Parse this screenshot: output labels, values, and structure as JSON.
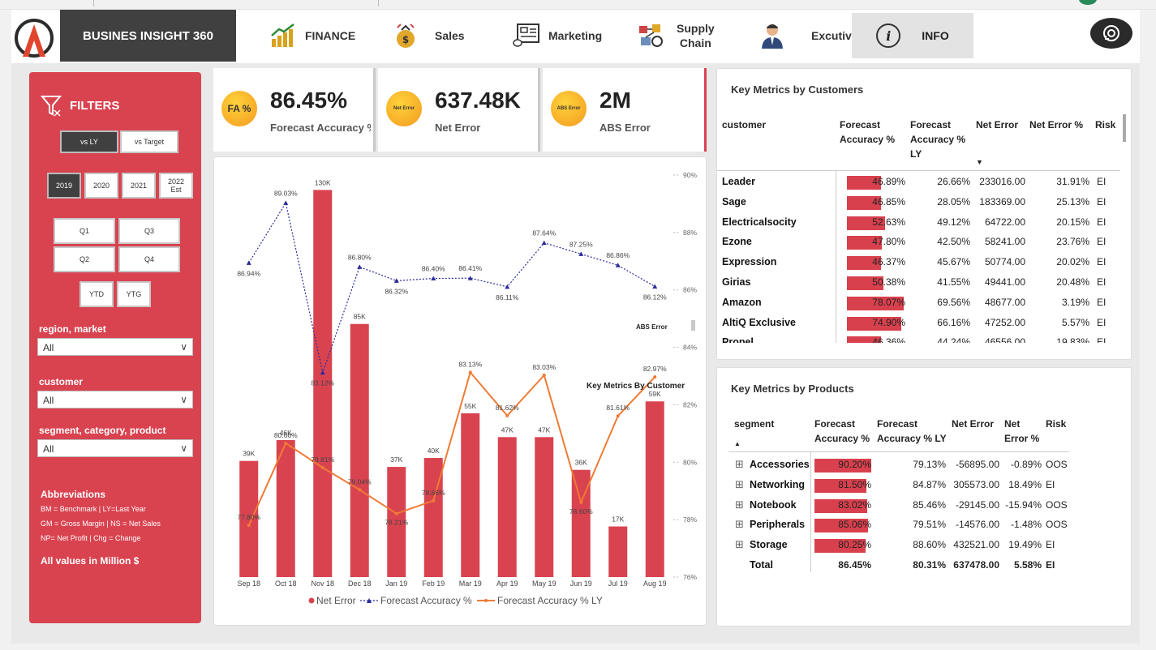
{
  "nav": {
    "brand": "BUSINES INSIGHT 360",
    "items": [
      {
        "label": "FINANCE",
        "icon": "finance-chart-icon"
      },
      {
        "label": "Sales",
        "icon": "money-bag-icon"
      },
      {
        "label": "Marketing",
        "icon": "marketing-board-icon"
      },
      {
        "label": "Supply\nChain",
        "icon": "supply-chain-icon"
      },
      {
        "label": "Excutive",
        "icon": "executive-person-icon"
      }
    ],
    "info_label": "INFO",
    "info_icon_text": "i"
  },
  "filters": {
    "title": "FILTERS",
    "compare": [
      "vs LY",
      "vs Target"
    ],
    "years": [
      "2019",
      "2020",
      "2021",
      "2022\nEst"
    ],
    "quarters": [
      "Q1",
      "Q3",
      "Q2",
      "Q4"
    ],
    "periods": [
      "YTD",
      "YTG"
    ],
    "region_label": "region, market",
    "region_value": "All",
    "customer_label": "customer",
    "customer_value": "All",
    "segment_label": "segment, category, product",
    "segment_value": "All",
    "abbr_title": "Abbreviations",
    "abbr_lines": [
      "BM = Benchmark | LY=Last Year",
      "GM = Gross Margin | NS = Net Sales",
      "NP= Net Profit | Chg = Change"
    ],
    "all_values": "All values in Million $"
  },
  "kpis": [
    {
      "badge": "FA %",
      "value": "86.45%",
      "label": "Forecast Accuracy %"
    },
    {
      "badge": "Net Error",
      "value": "637.48K",
      "label": "Net Error"
    },
    {
      "badge": "ABS Error",
      "value": "2M",
      "label": "ABS Error"
    }
  ],
  "chart_data": {
    "type": "bar",
    "categories": [
      "Sep 18",
      "Oct 18",
      "Nov 18",
      "Dec 18",
      "Jan 19",
      "Feb 19",
      "Mar 19",
      "Apr 19",
      "May 19",
      "Jun 19",
      "Jul 19",
      "Aug 19"
    ],
    "series": [
      {
        "name": "Net Error",
        "type": "bar",
        "values": [
          39,
          46,
          130,
          85,
          37,
          40,
          55,
          47,
          47,
          36,
          17,
          59
        ],
        "labels": [
          "39K",
          "46K",
          "130K",
          "85K",
          "37K",
          "40K",
          "55K",
          "47K",
          "47K",
          "36K",
          "17K",
          "59K"
        ]
      },
      {
        "name": "Forecast Accuracy %",
        "type": "line",
        "values": [
          86.94,
          89.03,
          83.12,
          86.8,
          86.32,
          86.4,
          86.41,
          86.11,
          87.64,
          87.25,
          86.86,
          86.12
        ],
        "labels": [
          "86.94%",
          "89.03%",
          "83.12%",
          "86.80%",
          "86.32%",
          "86.40%",
          "86.41%",
          "86.11%",
          "87.64%",
          "87.25%",
          "86.86%",
          "86.12%"
        ]
      },
      {
        "name": "Forecast Accuracy % LY",
        "type": "line",
        "values": [
          77.8,
          80.66,
          79.81,
          79.04,
          78.21,
          78.66,
          83.13,
          81.62,
          83.03,
          78.6,
          81.61,
          82.97
        ],
        "labels": [
          "77.80%",
          "80.66%",
          "79.81%",
          "79.04%",
          "78.21%",
          "78.66%",
          "83.13%",
          "81.62%",
          "83.03%",
          "78.60%",
          "81.61%",
          "82.97%"
        ]
      }
    ],
    "y2_ticks": [
      "90%",
      "88%",
      "86%",
      "84%",
      "82%",
      "80%",
      "78%",
      "76%"
    ],
    "y2lim": [
      76,
      90
    ],
    "ylim": [
      0,
      135
    ],
    "overlay_labels": [
      "ABS Error",
      "Key Metrics By Customer"
    ],
    "legend": [
      "Net Error",
      "Forecast Accuracy %",
      "Forecast Accuracy % LY"
    ]
  },
  "customers": {
    "title": "Key Metrics by Customers",
    "headers": [
      "customer",
      "Forecast\nAccuracy %",
      "Forecast\nAccuracy %\nLY",
      "Net Error",
      "Net Error %",
      "Risk"
    ],
    "rows": [
      {
        "name": "Leader",
        "fa": "46.89%",
        "fa_pct": 46.89,
        "ly": "26.66%",
        "ne": "233016.00",
        "nep": "31.91%",
        "risk": "EI"
      },
      {
        "name": "Sage",
        "fa": "46.85%",
        "fa_pct": 46.85,
        "ly": "28.05%",
        "ne": "183369.00",
        "nep": "25.13%",
        "risk": "EI"
      },
      {
        "name": "Electricalsocity",
        "fa": "52.63%",
        "fa_pct": 52.63,
        "ly": "49.12%",
        "ne": "64722.00",
        "nep": "20.15%",
        "risk": "EI"
      },
      {
        "name": "Ezone",
        "fa": "47.80%",
        "fa_pct": 47.8,
        "ly": "42.50%",
        "ne": "58241.00",
        "nep": "23.76%",
        "risk": "EI"
      },
      {
        "name": "Expression",
        "fa": "46.37%",
        "fa_pct": 46.37,
        "ly": "45.67%",
        "ne": "50774.00",
        "nep": "20.02%",
        "risk": "EI"
      },
      {
        "name": "Girias",
        "fa": "50.38%",
        "fa_pct": 50.38,
        "ly": "41.55%",
        "ne": "49441.00",
        "nep": "20.48%",
        "risk": "EI"
      },
      {
        "name": "Amazon",
        "fa": "78.07%",
        "fa_pct": 78.07,
        "ly": "69.56%",
        "ne": "48677.00",
        "nep": "3.19%",
        "risk": "EI"
      },
      {
        "name": "AltiQ Exclusive",
        "fa": "74.90%",
        "fa_pct": 74.9,
        "ly": "66.16%",
        "ne": "47252.00",
        "nep": "5.57%",
        "risk": "EI"
      },
      {
        "name": "Propel",
        "fa": "46.36%",
        "fa_pct": 46.36,
        "ly": "44.24%",
        "ne": "46556.00",
        "nep": "19.83%",
        "risk": "EI"
      }
    ]
  },
  "products": {
    "title": "Key Metrics by Products",
    "headers": [
      "segment",
      "Forecast\nAccuracy %",
      "Forecast\nAccuracy % LY",
      "Net Error",
      "Net\nError %",
      "Risk"
    ],
    "rows": [
      {
        "name": "Accessories",
        "fa": "90.20%",
        "fa_pct": 90.2,
        "ly": "79.13%",
        "ne": "-56895.00",
        "nep": "-0.89%",
        "risk": "OOS"
      },
      {
        "name": "Networking",
        "fa": "81.50%",
        "fa_pct": 81.5,
        "ly": "84.87%",
        "ne": "305573.00",
        "nep": "18.49%",
        "risk": "EI"
      },
      {
        "name": "Notebook",
        "fa": "83.02%",
        "fa_pct": 83.02,
        "ly": "85.46%",
        "ne": "-29145.00",
        "nep": "-15.94%",
        "risk": "OOS"
      },
      {
        "name": "Peripherals",
        "fa": "85.06%",
        "fa_pct": 85.06,
        "ly": "79.51%",
        "ne": "-14576.00",
        "nep": "-1.48%",
        "risk": "OOS"
      },
      {
        "name": "Storage",
        "fa": "80.25%",
        "fa_pct": 80.25,
        "ly": "88.60%",
        "ne": "432521.00",
        "nep": "19.49%",
        "risk": "EI"
      }
    ],
    "total": {
      "name": "Total",
      "fa": "86.45%",
      "ly": "80.31%",
      "ne": "637478.00",
      "nep": "5.58%",
      "risk": "EI"
    }
  },
  "colors": {
    "accent": "#d94350",
    "dark": "#404040",
    "line_fa": "#2b2b9a",
    "line_ly": "#f07a35"
  }
}
